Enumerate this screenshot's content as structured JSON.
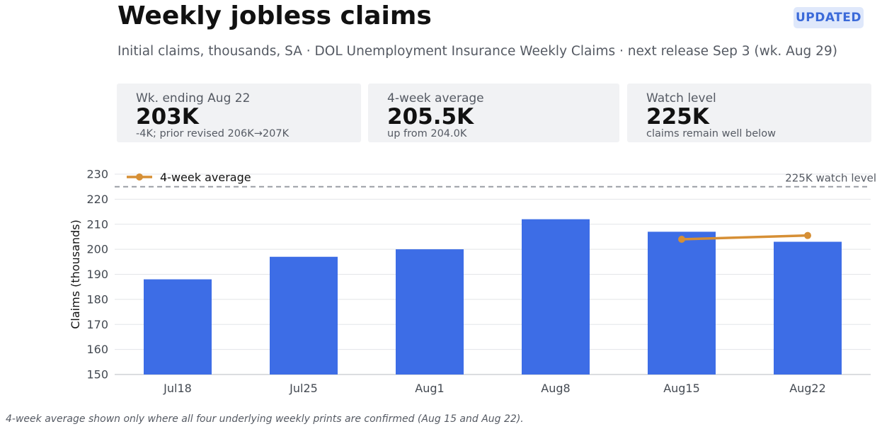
{
  "header": {
    "title": "Weekly jobless claims",
    "badge": "UPDATED",
    "subtitle": "Initial claims, thousands, SA · DOL Unemployment Insurance Weekly Claims · next release Sep 3 (wk. Aug 29)"
  },
  "cards": [
    {
      "label": "Wk. ending Aug 22",
      "value": "203K",
      "note": "-4K; prior revised 206K→207K"
    },
    {
      "label": "4-week average",
      "value": "205.5K",
      "note": "up from 204.0K"
    },
    {
      "label": "Watch level",
      "value": "225K",
      "note": "claims remain well below"
    }
  ],
  "chart_data": {
    "type": "bar",
    "categories": [
      "Jul18",
      "Jul25",
      "Aug1",
      "Aug8",
      "Aug15",
      "Aug22"
    ],
    "series": [
      {
        "values": [
          188,
          197,
          200,
          212,
          207,
          203
        ],
        "color": "#3d6de6"
      },
      {
        "name": "4-week average",
        "type": "line",
        "values": [
          null,
          null,
          null,
          null,
          204.0,
          205.5
        ],
        "color": "#d68f35"
      }
    ],
    "reference_line": {
      "value": 225,
      "label": "225K watch level",
      "style": "dashed"
    },
    "ylabel": "Claims (thousands)",
    "ylim": [
      150,
      230
    ],
    "yticks": [
      150,
      160,
      170,
      180,
      190,
      200,
      210,
      220,
      230
    ],
    "grid": true,
    "legend": "top-left"
  },
  "footnote": "4-week average shown only where all four underlying weekly prints are confirmed (Aug 15 and Aug 22)."
}
